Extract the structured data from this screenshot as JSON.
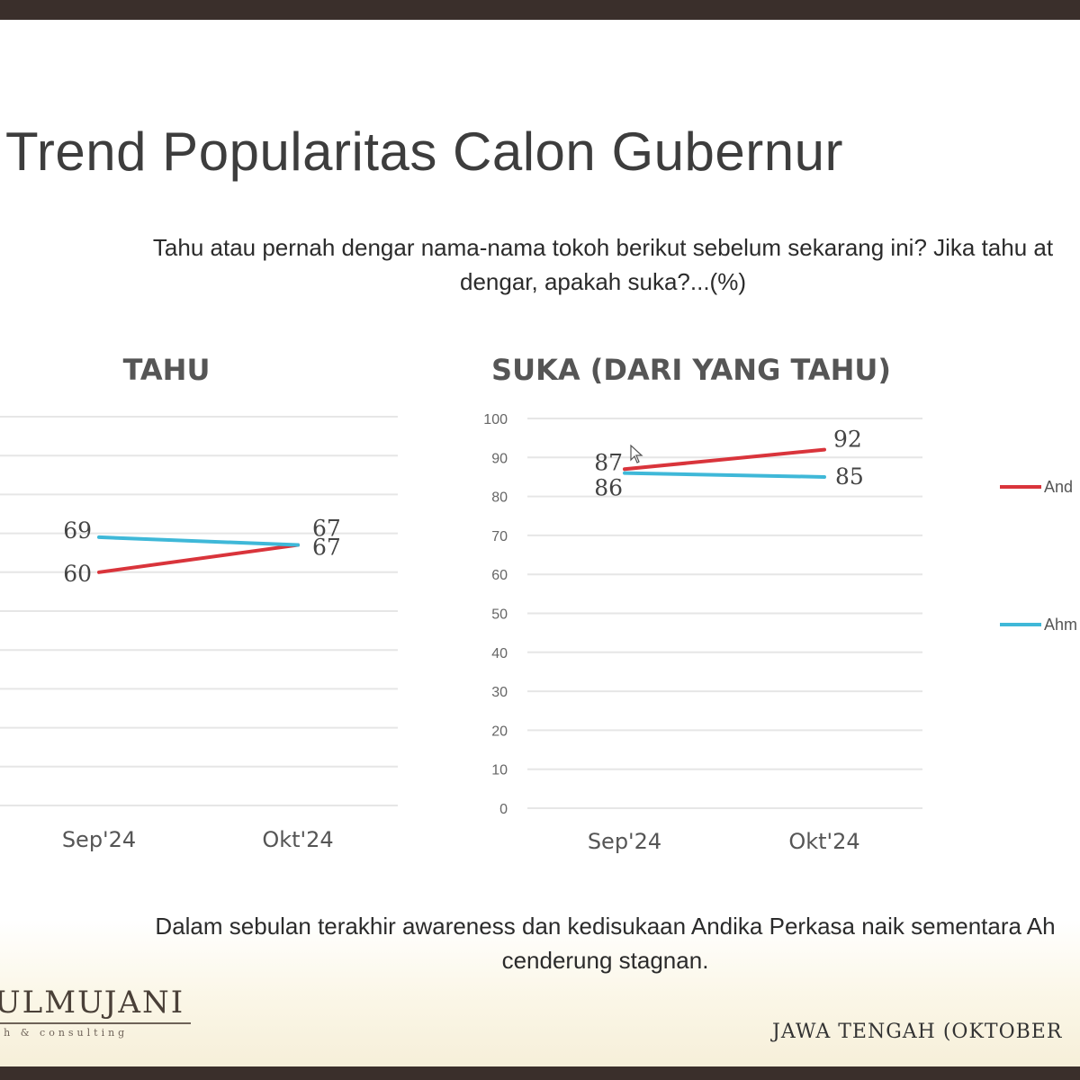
{
  "title": "Trend Popularitas Calon Gubernur",
  "question": {
    "line1": "Tahu atau pernah dengar nama-nama tokoh berikut sebelum sekarang ini? Jika tahu at",
    "line2": "dengar, apakah suka?...(%)"
  },
  "chart_data": [
    {
      "type": "line",
      "title": "TAHU",
      "categories": [
        "Sep'24",
        "Okt'24"
      ],
      "series": [
        {
          "name": "",
          "color": "#d9343b",
          "values": [
            60,
            67
          ]
        },
        {
          "name": "",
          "color": "#3fb8d8",
          "values": [
            69,
            67
          ]
        }
      ],
      "ylim": [
        0,
        100
      ],
      "grid": true
    },
    {
      "type": "line",
      "title": "SUKA (DARI YANG TAHU)",
      "categories": [
        "Sep'24",
        "Okt'24"
      ],
      "yticks": [
        "0",
        "10",
        "20",
        "30",
        "40",
        "50",
        "60",
        "70",
        "80",
        "90",
        "100"
      ],
      "series": [
        {
          "name": "And",
          "color": "#d9343b",
          "values": [
            87,
            92
          ]
        },
        {
          "name": "Ahm",
          "color": "#3fb8d8",
          "values": [
            86,
            85
          ]
        }
      ],
      "ylim": [
        0,
        100
      ],
      "grid": true,
      "legend": "right"
    }
  ],
  "summary": {
    "line1": "Dalam sebulan terakhir awareness dan kedisukaan Andika Perkasa naik sementara Ah",
    "line2": "cenderung stagnan."
  },
  "logo": {
    "name": "ULMUJANI",
    "tagline": "ch & consulting"
  },
  "footer": {
    "region": "JAWA TENGAH (OKTOBER"
  },
  "icons": {
    "cursor": "mouse-pointer-icon"
  }
}
